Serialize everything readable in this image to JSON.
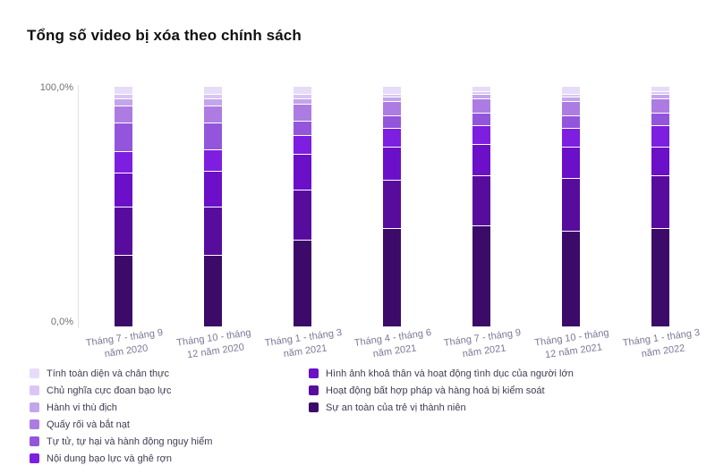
{
  "chart_data": {
    "type": "bar",
    "stacked": true,
    "percent": true,
    "title": "Tổng số video bị xóa theo chính sách",
    "ylim": [
      0,
      100
    ],
    "grid": false,
    "legend_position": "bottom",
    "y_ticks": [
      "100,0%",
      "0,0%"
    ],
    "categories": [
      [
        "Tháng 7 - tháng 9",
        "năm 2020"
      ],
      [
        "Tháng 10 - tháng",
        "12 năm 2020"
      ],
      [
        "Tháng 1 - tháng 3",
        "năm 2021"
      ],
      [
        "Tháng 4 - tháng 6",
        "năm 2021"
      ],
      [
        "Tháng 7 - tháng 9",
        "năm 2021"
      ],
      [
        "Tháng 10 - tháng",
        "12 năm 2021"
      ],
      [
        "Tháng 1 - tháng 3",
        "năm 2022"
      ]
    ],
    "series": [
      {
        "name": "Tính toàn diện và chân thực",
        "color": "#E7DCF8",
        "values": [
          3,
          3,
          3,
          3,
          2,
          3,
          2
        ]
      },
      {
        "name": "Chủ nghĩa cực đoan bạo lực",
        "color": "#D9C6F3",
        "values": [
          2,
          2,
          2,
          1,
          1,
          1,
          1
        ]
      },
      {
        "name": "Hành vi thù địch",
        "color": "#C3A5EC",
        "values": [
          3,
          3,
          2,
          2,
          2,
          2,
          2
        ]
      },
      {
        "name": "Quấy rối và bắt nạt",
        "color": "#AC7CE3",
        "values": [
          7,
          7,
          7,
          6,
          6,
          6,
          6
        ]
      },
      {
        "name": "Tự tử, tự hại và hành động nguy hiểm",
        "color": "#9355DC",
        "values": [
          12,
          11,
          6,
          5,
          5,
          5,
          5
        ]
      },
      {
        "name": "Nội dung bạo lực và ghê rợn",
        "color": "#7D1EE0",
        "values": [
          9,
          9,
          8,
          8,
          8,
          8,
          9
        ]
      },
      {
        "name": "Hình ảnh khoả thân và hoạt động tình dục của người lớn",
        "color": "#6B0FC8",
        "values": [
          14,
          15,
          15,
          14,
          13,
          13,
          12
        ]
      },
      {
        "name": "Hoạt động bất hợp pháp và hàng hoá bị kiểm soát",
        "color": "#580C9E",
        "values": [
          20,
          20,
          21,
          20,
          21,
          22,
          22
        ]
      },
      {
        "name": "Sự an toàn của trẻ vị thành niên",
        "color": "#3C0A68",
        "values": [
          30,
          30,
          36,
          41,
          42,
          40,
          41
        ]
      }
    ],
    "legend_columns": {
      "left_count": 6,
      "right_count": 3
    }
  }
}
